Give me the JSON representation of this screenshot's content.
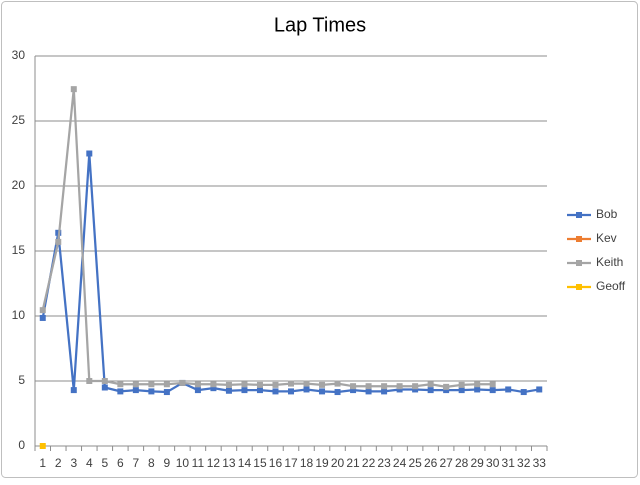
{
  "chart_data": {
    "type": "line",
    "title": "Lap Times",
    "categories": [
      1,
      2,
      3,
      4,
      5,
      6,
      7,
      8,
      9,
      10,
      11,
      12,
      13,
      14,
      15,
      16,
      17,
      18,
      19,
      20,
      21,
      22,
      23,
      24,
      25,
      26,
      27,
      28,
      29,
      30,
      31,
      32,
      33
    ],
    "series": [
      {
        "name": "Bob",
        "color": "#4472c4",
        "values": [
          9.85,
          16.4,
          4.3,
          22.5,
          4.5,
          4.2,
          4.3,
          4.2,
          4.15,
          4.85,
          4.3,
          4.45,
          4.25,
          4.3,
          4.3,
          4.2,
          4.2,
          4.35,
          4.2,
          4.15,
          4.3,
          4.2,
          4.2,
          4.35,
          4.35,
          4.3,
          4.3,
          4.3,
          4.35,
          4.3,
          4.35,
          4.15,
          4.35
        ]
      },
      {
        "name": "Kev",
        "color": "#ed7d31",
        "values": [
          null,
          null,
          null,
          null,
          null,
          null,
          null,
          null,
          null,
          null,
          null,
          null,
          null,
          null,
          null,
          null,
          null,
          null,
          null,
          null,
          null,
          null,
          null,
          null,
          null,
          null,
          null,
          null,
          null,
          null,
          null,
          null,
          null
        ]
      },
      {
        "name": "Keith",
        "color": "#a5a5a5",
        "values": [
          10.45,
          15.7,
          27.45,
          5.0,
          5.0,
          4.75,
          4.75,
          4.75,
          4.75,
          4.85,
          4.75,
          4.75,
          4.7,
          4.75,
          4.7,
          4.7,
          4.8,
          4.8,
          4.7,
          4.8,
          4.6,
          4.6,
          4.6,
          4.6,
          4.6,
          4.75,
          4.55,
          4.7,
          4.75,
          4.75,
          null,
          null,
          null
        ]
      },
      {
        "name": "Geoff",
        "color": "#ffc000",
        "values": [
          0,
          null,
          null,
          null,
          null,
          null,
          null,
          null,
          null,
          null,
          null,
          null,
          null,
          null,
          null,
          null,
          null,
          null,
          null,
          null,
          null,
          null,
          null,
          null,
          null,
          null,
          null,
          null,
          null,
          null,
          null,
          null,
          null
        ]
      }
    ],
    "ylim": [
      0,
      30
    ],
    "yticks": [
      0,
      5,
      10,
      15,
      20,
      25,
      30
    ],
    "grid": true,
    "legend": "right"
  }
}
